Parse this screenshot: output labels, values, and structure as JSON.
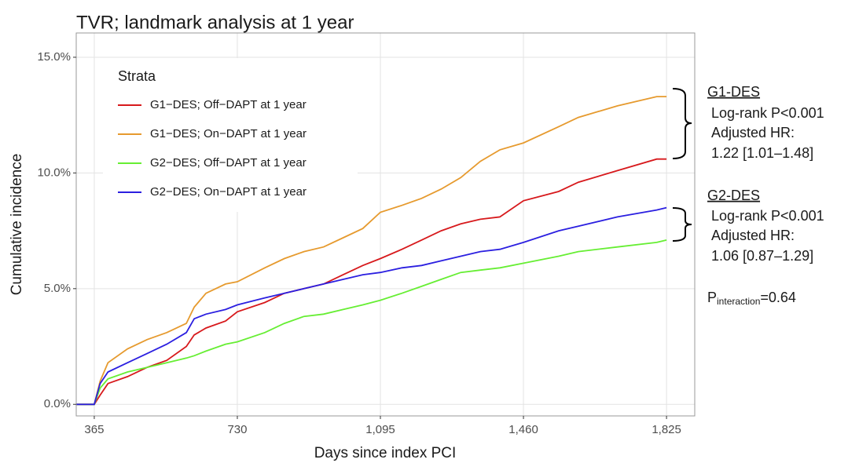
{
  "chart_data": {
    "type": "line",
    "title": "TVR; landmark analysis at 1 year",
    "x_label": "Days since index PCI",
    "y_label": "Cumulative incidence",
    "legend_title": "Strata",
    "x": [
      320,
      365,
      380,
      400,
      450,
      500,
      550,
      600,
      620,
      650,
      700,
      730,
      800,
      850,
      900,
      950,
      1000,
      1050,
      1095,
      1150,
      1200,
      1250,
      1300,
      1350,
      1400,
      1460,
      1550,
      1600,
      1700,
      1800,
      1825
    ],
    "series": [
      {
        "name": "G1−DES; Off−DAPT at 1 year",
        "color": "#d7191c",
        "values": [
          0,
          0,
          0.4,
          0.9,
          1.2,
          1.6,
          1.9,
          2.5,
          3.0,
          3.3,
          3.6,
          4.0,
          4.4,
          4.8,
          5.0,
          5.2,
          5.6,
          6.0,
          6.3,
          6.7,
          7.1,
          7.5,
          7.8,
          8.0,
          8.1,
          8.8,
          9.2,
          9.6,
          10.1,
          10.6,
          10.6
        ]
      },
      {
        "name": "G1−DES; On−DAPT at 1 year",
        "color": "#e69a2e",
        "values": [
          0,
          0,
          1.0,
          1.8,
          2.4,
          2.8,
          3.1,
          3.5,
          4.2,
          4.8,
          5.2,
          5.3,
          5.9,
          6.3,
          6.6,
          6.8,
          7.2,
          7.6,
          8.3,
          8.6,
          8.9,
          9.3,
          9.8,
          10.5,
          11.0,
          11.3,
          12.0,
          12.4,
          12.9,
          13.3,
          13.3
        ]
      },
      {
        "name": "G2−DES; Off−DAPT at 1 year",
        "color": "#66ee33",
        "values": [
          0,
          0,
          0.7,
          1.1,
          1.4,
          1.6,
          1.8,
          2.0,
          2.1,
          2.3,
          2.6,
          2.7,
          3.1,
          3.5,
          3.8,
          3.9,
          4.1,
          4.3,
          4.5,
          4.8,
          5.1,
          5.4,
          5.7,
          5.8,
          5.9,
          6.1,
          6.4,
          6.6,
          6.8,
          7.0,
          7.1
        ]
      },
      {
        "name": "G2−DES; On−DAPT at 1 year",
        "color": "#2b1fe0",
        "values": [
          0,
          0,
          0.9,
          1.4,
          1.8,
          2.2,
          2.6,
          3.1,
          3.7,
          3.9,
          4.1,
          4.3,
          4.6,
          4.8,
          5.0,
          5.2,
          5.4,
          5.6,
          5.7,
          5.9,
          6.0,
          6.2,
          6.4,
          6.6,
          6.7,
          7.0,
          7.5,
          7.7,
          8.1,
          8.4,
          8.5
        ]
      }
    ],
    "xlim": [
      319,
      1897
    ],
    "ylim": [
      -0.5,
      16.05
    ],
    "xticks": [
      365,
      730,
      {
        "value": 1095,
        "label": "1,095"
      },
      {
        "value": 1460,
        "label": "1,460"
      },
      {
        "value": 1825,
        "label": "1,825"
      }
    ],
    "yticks": [
      {
        "value": 0,
        "label": "0.0%"
      },
      {
        "value": 5,
        "label": "5.0%"
      },
      {
        "value": 10,
        "label": "10.0%"
      },
      {
        "value": 15,
        "label": "15.0%"
      }
    ],
    "grid": true,
    "legend_position": "top-left",
    "annotations": [
      {
        "heading": "G1-DES",
        "lines": [
          "Log-rank P<0.001",
          "Adjusted HR:",
          "1.22 [1.01–1.48]"
        ]
      },
      {
        "heading": "G2-DES",
        "lines": [
          "Log-rank P<0.001",
          "Adjusted HR:",
          "1.06 [0.87–1.29]"
        ]
      }
    ],
    "interaction": {
      "symbol": "P",
      "subscript": "interaction",
      "text": "=0.64"
    }
  }
}
